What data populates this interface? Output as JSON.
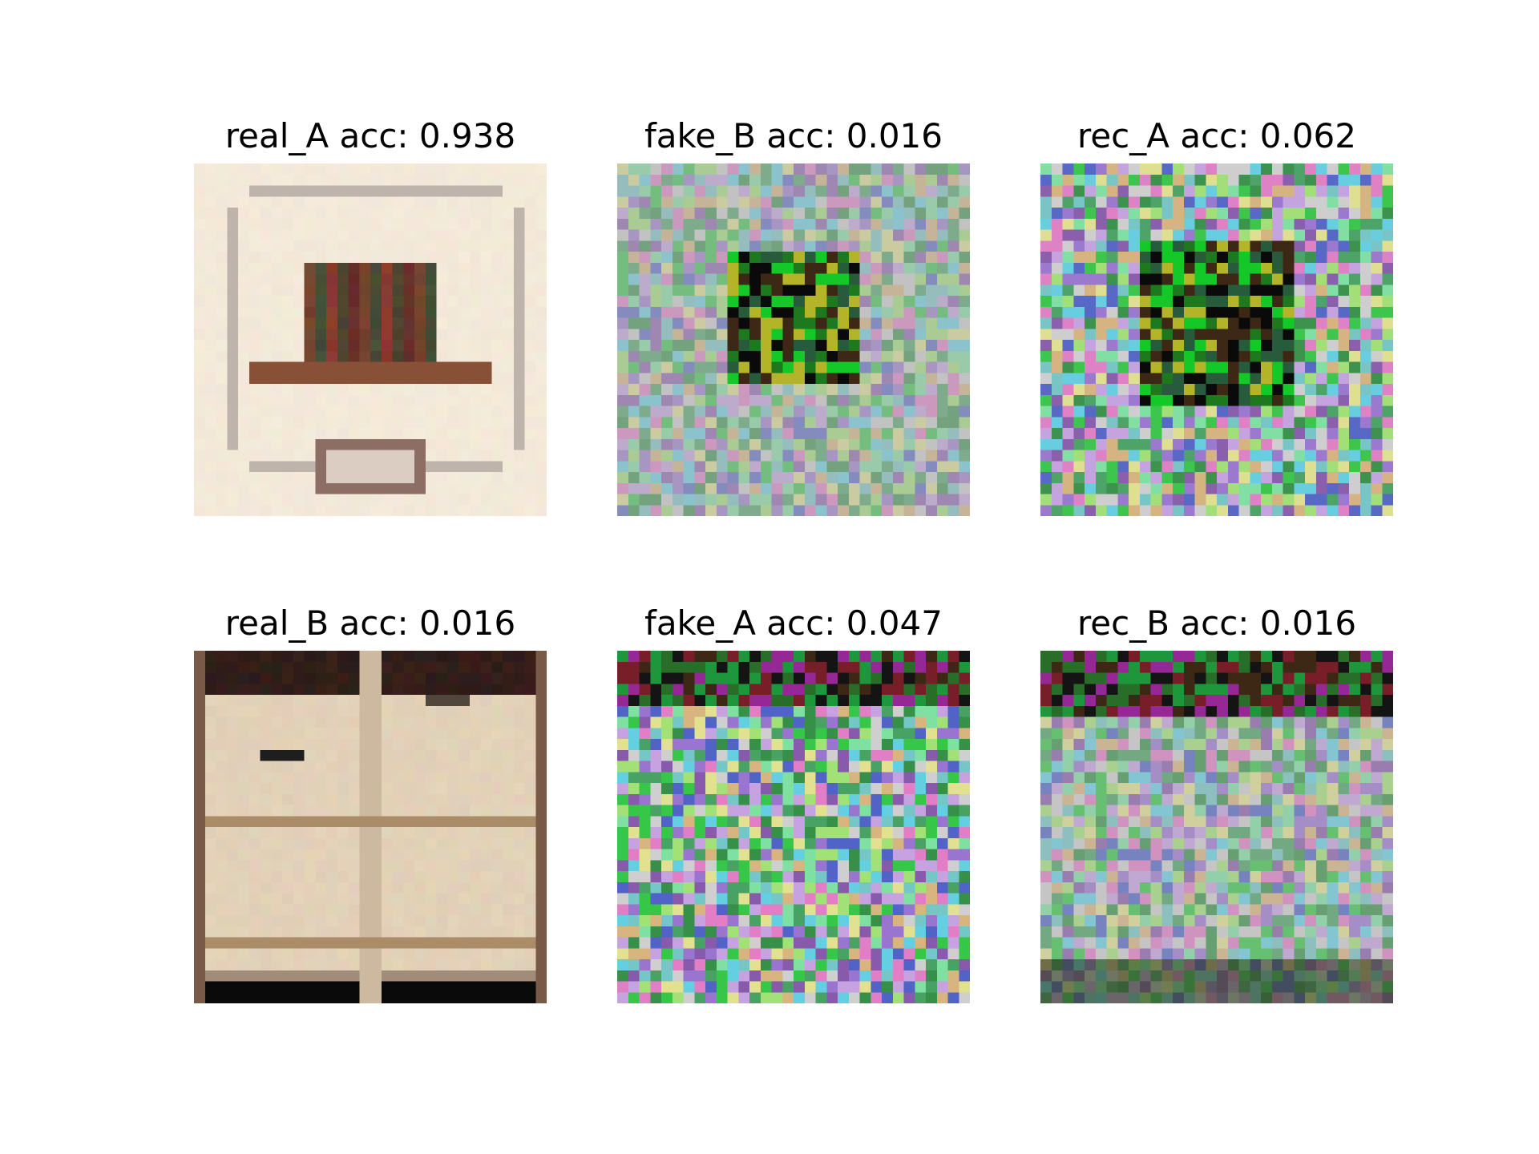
{
  "figure": {
    "panels": [
      {
        "title": "real_A acc: 0.938",
        "kind": "real_A"
      },
      {
        "title": "fake_B acc: 0.016",
        "kind": "fake_B"
      },
      {
        "title": "rec_A acc: 0.062",
        "kind": "rec_A"
      },
      {
        "title": "real_B acc: 0.016",
        "kind": "real_B"
      },
      {
        "title": "fake_A acc: 0.047",
        "kind": "fake_A"
      },
      {
        "title": "rec_B acc: 0.016",
        "kind": "rec_B"
      }
    ]
  }
}
